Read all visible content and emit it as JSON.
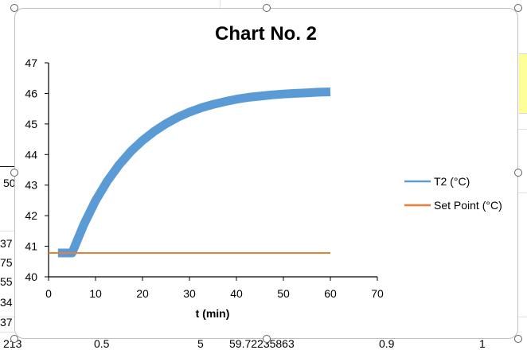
{
  "spreadsheet": {
    "left_cells": [
      {
        "text": "50"
      },
      {
        "text": "37"
      },
      {
        "text": "75"
      },
      {
        "text": "55"
      },
      {
        "text": "34"
      },
      {
        "text": "37"
      },
      {
        "text": "213"
      }
    ],
    "bottom_row": [
      "0.5",
      "5",
      "59.72235863",
      "0.9",
      "1"
    ]
  },
  "chart_data": {
    "type": "line",
    "title": "Chart No. 2",
    "xlabel": "t (min)",
    "ylabel": "",
    "xlim": [
      0,
      70
    ],
    "ylim": [
      40,
      47
    ],
    "x_ticks": [
      0,
      10,
      20,
      30,
      40,
      50,
      60,
      70
    ],
    "y_ticks": [
      40,
      41,
      42,
      43,
      44,
      45,
      46,
      47
    ],
    "grid": false,
    "legend_position": "right",
    "series": [
      {
        "name": "T2 (°C)",
        "color": "#5b9bd5",
        "x": [
          2,
          5,
          7.5,
          10,
          12.5,
          15,
          17.5,
          20,
          22.5,
          25,
          27.5,
          30,
          32.5,
          35,
          37.5,
          40,
          42.5,
          45,
          47.5,
          50,
          52.5,
          55,
          57.5,
          60
        ],
        "y": [
          40.78,
          40.78,
          41.71,
          42.49,
          43.13,
          43.66,
          44.1,
          44.46,
          44.76,
          45.01,
          45.22,
          45.39,
          45.53,
          45.64,
          45.73,
          45.81,
          45.87,
          45.91,
          45.95,
          45.98,
          46.0,
          46.02,
          46.04,
          46.05
        ]
      },
      {
        "name": "Set Point (°C)",
        "color": "#ed7d31",
        "x": [
          0,
          60
        ],
        "y": [
          40.78,
          40.78
        ]
      }
    ]
  }
}
